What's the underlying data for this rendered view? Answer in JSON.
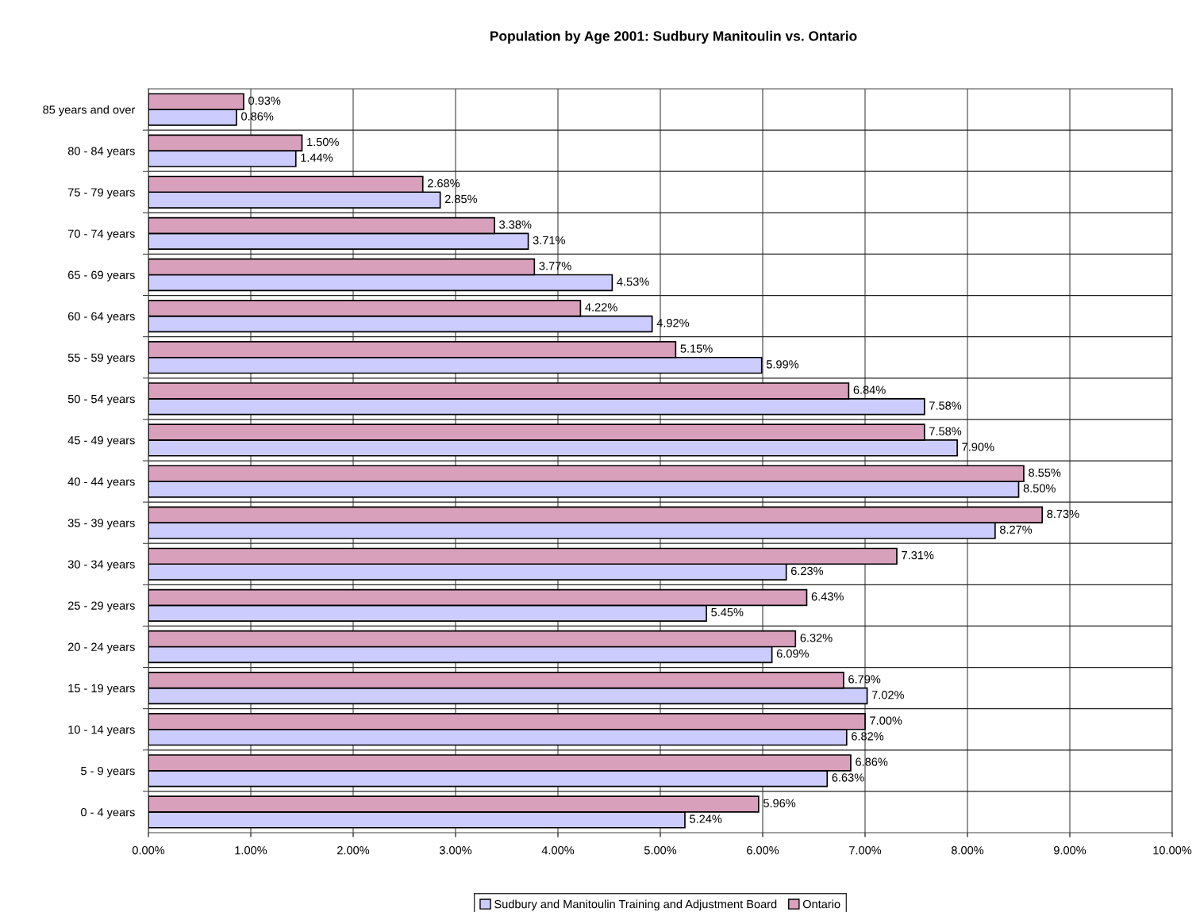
{
  "chart_data": {
    "type": "bar",
    "orientation": "horizontal",
    "title": "Population by Age 2001: Sudbury Manitoulin vs. Ontario",
    "categories": [
      "85 years and over",
      "80 - 84 years",
      "75 - 79 years",
      "70 - 74 years",
      "65 - 69 years",
      "60 - 64 years",
      "55 - 59 years",
      "50 - 54 years",
      "45 - 49 years",
      "40 - 44 years",
      "35 - 39 years",
      "30 - 34 years",
      "25 - 29 years",
      "20 - 24 years",
      "15 - 19 years",
      "10 - 14 years",
      "5 - 9 years",
      "0 - 4 years"
    ],
    "series": [
      {
        "name": "Sudbury and Manitoulin Training and Adjustment Board",
        "color": "#ccccff",
        "values": [
          0.86,
          1.44,
          2.85,
          3.71,
          4.53,
          4.92,
          5.99,
          7.58,
          7.9,
          8.5,
          8.27,
          6.23,
          5.45,
          6.09,
          7.02,
          6.82,
          6.63,
          5.24
        ],
        "value_labels": [
          "0.86%",
          "1.44%",
          "2.85%",
          "3.71%",
          "4.53%",
          "4.92%",
          "5.99%",
          "7.58%",
          "7.90%",
          "8.50%",
          "8.27%",
          "6.23%",
          "5.45%",
          "6.09%",
          "7.02%",
          "6.82%",
          "6.63%",
          "5.24%"
        ]
      },
      {
        "name": "Ontario",
        "color": "#d9a0bb",
        "values": [
          0.93,
          1.5,
          2.68,
          3.38,
          3.77,
          4.22,
          5.15,
          6.84,
          7.58,
          8.55,
          8.73,
          7.31,
          6.43,
          6.32,
          6.79,
          7.0,
          6.86,
          5.96
        ],
        "value_labels": [
          "0.93%",
          "1.50%",
          "2.68%",
          "3.38%",
          "3.77%",
          "4.22%",
          "5.15%",
          "6.84%",
          "7.58%",
          "8.55%",
          "8.73%",
          "7.31%",
          "6.43%",
          "6.32%",
          "6.79%",
          "7.00%",
          "6.86%",
          "5.96%"
        ]
      }
    ],
    "xlim": [
      0,
      10
    ],
    "xticks": [
      {
        "value": 0,
        "label": "0.00%"
      },
      {
        "value": 1,
        "label": "1.00%"
      },
      {
        "value": 2,
        "label": "2.00%"
      },
      {
        "value": 3,
        "label": "3.00%"
      },
      {
        "value": 4,
        "label": "4.00%"
      },
      {
        "value": 5,
        "label": "5.00%"
      },
      {
        "value": 6,
        "label": "6.00%"
      },
      {
        "value": 7,
        "label": "7.00%"
      },
      {
        "value": 8,
        "label": "8.00%"
      },
      {
        "value": 9,
        "label": "9.00%"
      },
      {
        "value": 10,
        "label": "10.00%"
      }
    ],
    "grid": true,
    "legend": "bottom"
  }
}
